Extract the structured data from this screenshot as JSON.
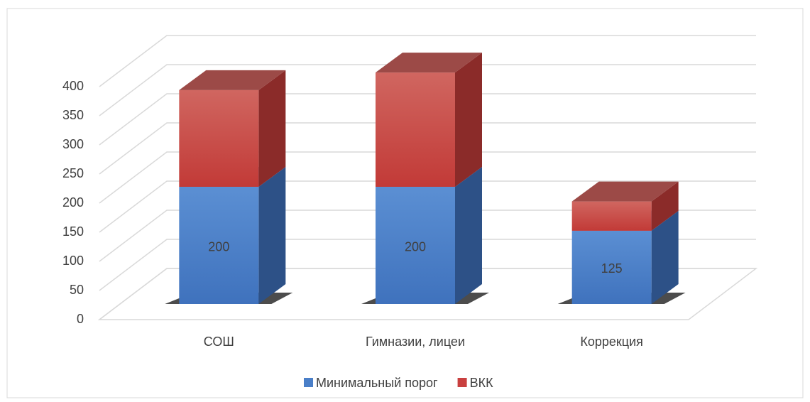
{
  "chart_data": {
    "type": "bar3d_stacked",
    "categories": [
      "СОШ",
      "Гимназии, лицеи",
      "Коррекция"
    ],
    "series": [
      {
        "name": "Минимальный порог",
        "color": "#4a7fc8",
        "values": [
          200,
          200,
          125
        ]
      },
      {
        "name": "ВКК",
        "color": "#c9403f",
        "values": [
          165,
          195,
          50
        ]
      }
    ],
    "ylim": [
      0,
      400
    ],
    "yticks": [
      0,
      50,
      100,
      150,
      200,
      250,
      300,
      350,
      400
    ],
    "grid": true,
    "legend": "bottom"
  }
}
